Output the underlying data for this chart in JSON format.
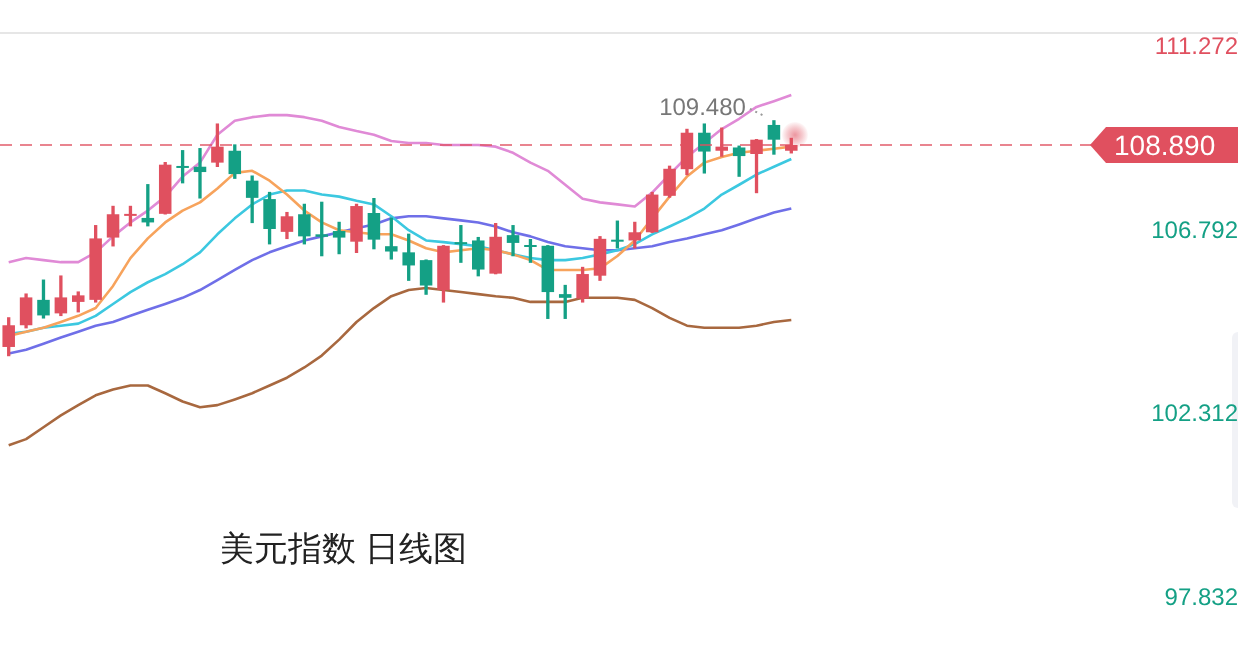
{
  "chart_data": {
    "type": "candlestick",
    "title": "美元指数 日线图",
    "categories": [
      null,
      null,
      null,
      null,
      null,
      null,
      null,
      null,
      null,
      null,
      null,
      null,
      null,
      null,
      null,
      null,
      null,
      null,
      null,
      null,
      null,
      null,
      null,
      null,
      null,
      null,
      null,
      null,
      null,
      null,
      null,
      null,
      null,
      null,
      null,
      null,
      null,
      null,
      null,
      null,
      null,
      null,
      null,
      null,
      null,
      null
    ],
    "ohlc": [
      [
        103.96,
        104.67,
        103.75,
        104.49
      ],
      [
        104.49,
        105.25,
        104.43,
        105.17
      ],
      [
        105.11,
        105.59,
        104.67,
        104.73
      ],
      [
        104.78,
        105.69,
        104.73,
        105.17
      ],
      [
        105.06,
        105.3,
        104.82,
        105.22
      ],
      [
        105.11,
        106.92,
        105.06,
        106.61
      ],
      [
        106.63,
        107.39,
        106.43,
        107.2
      ],
      [
        107.16,
        107.39,
        106.92,
        107.2
      ],
      [
        107.11,
        107.92,
        106.92,
        107.0
      ],
      [
        107.21,
        108.46,
        107.21,
        108.41
      ],
      [
        108.36,
        108.75,
        107.97,
        108.33
      ],
      [
        108.36,
        108.8,
        107.6,
        108.23
      ],
      [
        108.46,
        109.4,
        108.37,
        108.85
      ],
      [
        108.75,
        108.89,
        108.08,
        108.18
      ],
      [
        108.02,
        108.13,
        107.0,
        107.6
      ],
      [
        107.57,
        107.73,
        106.48,
        106.84
      ],
      [
        106.77,
        107.24,
        106.61,
        107.15
      ],
      [
        107.2,
        107.44,
        106.48,
        106.66
      ],
      [
        106.71,
        107.49,
        106.19,
        106.65
      ],
      [
        106.79,
        107.0,
        106.24,
        106.63
      ],
      [
        106.53,
        107.44,
        106.27,
        107.4
      ],
      [
        107.23,
        107.58,
        106.36,
        106.58
      ],
      [
        106.42,
        107.1,
        106.11,
        106.29
      ],
      [
        106.27,
        106.71,
        105.59,
        105.95
      ],
      [
        106.08,
        106.08,
        105.25,
        105.46
      ],
      [
        105.35,
        106.43,
        105.06,
        106.43
      ],
      [
        106.5,
        106.92,
        106.03,
        106.47
      ],
      [
        106.56,
        106.63,
        105.7,
        105.85
      ],
      [
        105.75,
        106.97,
        105.75,
        106.65
      ],
      [
        106.69,
        106.92,
        106.19,
        106.5
      ],
      [
        106.43,
        106.58,
        106.03,
        106.4
      ],
      [
        106.43,
        106.43,
        104.66,
        105.3
      ],
      [
        105.25,
        105.46,
        104.66,
        105.16
      ],
      [
        105.14,
        105.9,
        105.06,
        105.74
      ],
      [
        105.7,
        106.65,
        105.59,
        106.6
      ],
      [
        106.56,
        107.03,
        106.38,
        106.53
      ],
      [
        106.56,
        107.0,
        106.38,
        106.76
      ],
      [
        106.76,
        107.73,
        106.76,
        107.68
      ],
      [
        107.65,
        108.37,
        107.62,
        108.31
      ],
      [
        108.3,
        109.27,
        108.17,
        109.19
      ],
      [
        109.19,
        109.4,
        108.21,
        108.73
      ],
      [
        108.75,
        109.3,
        108.62,
        108.85
      ],
      [
        108.83,
        108.86,
        108.13,
        108.62
      ],
      [
        108.67,
        109.02,
        107.73,
        109.02
      ],
      [
        109.38,
        109.48,
        108.67,
        109.02
      ],
      [
        108.75,
        109.05,
        108.7,
        108.89
      ]
    ],
    "colors": [
      "#e0505f",
      "#e0505f",
      "#14a085",
      "#e0505f",
      "#e0505f",
      "#e0505f",
      "#e0505f",
      "#e0505f",
      "#14a085",
      "#e0505f",
      "#14a085",
      "#14a085",
      "#e0505f",
      "#14a085",
      "#14a085",
      "#14a085",
      "#e0505f",
      "#14a085",
      "#14a085",
      "#14a085",
      "#e0505f",
      "#14a085",
      "#14a085",
      "#14a085",
      "#14a085",
      "#e0505f",
      "#14a085",
      "#14a085",
      "#e0505f",
      "#14a085",
      "#14a085",
      "#14a085",
      "#14a085",
      "#e0505f",
      "#e0505f",
      "#14a085",
      "#e0505f",
      "#e0505f",
      "#e0505f",
      "#e0505f",
      "#14a085",
      "#e0505f",
      "#14a085",
      "#e0505f",
      "#14a085",
      "#e0505f"
    ],
    "series": [
      {
        "type": "line",
        "color": "#e08ad6",
        "values": [
          106.03,
          106.13,
          106.08,
          106.03,
          106.03,
          106.27,
          106.66,
          107.0,
          107.29,
          107.63,
          108.12,
          108.46,
          109.14,
          109.48,
          109.57,
          109.62,
          109.62,
          109.57,
          109.48,
          109.33,
          109.23,
          109.14,
          108.99,
          108.94,
          108.94,
          108.89,
          108.89,
          108.89,
          108.85,
          108.7,
          108.46,
          108.26,
          107.92,
          107.58,
          107.49,
          107.44,
          107.39,
          107.73,
          108.17,
          108.6,
          108.94,
          109.28,
          109.53,
          109.82,
          109.96,
          110.11
        ]
      },
      {
        "type": "line",
        "color": "#6f6fe8",
        "values": [
          103.8,
          103.89,
          104.04,
          104.19,
          104.33,
          104.48,
          104.57,
          104.72,
          104.87,
          105.01,
          105.16,
          105.35,
          105.59,
          105.84,
          106.08,
          106.27,
          106.42,
          106.56,
          106.66,
          106.76,
          106.86,
          106.95,
          107.1,
          107.15,
          107.15,
          107.1,
          107.05,
          107.0,
          106.9,
          106.76,
          106.66,
          106.52,
          106.42,
          106.37,
          106.32,
          106.32,
          106.37,
          106.42,
          106.52,
          106.61,
          106.71,
          106.81,
          106.95,
          107.1,
          107.24,
          107.34
        ]
      },
      {
        "type": "line",
        "color": "#a8683f",
        "values": [
          101.56,
          101.71,
          102.0,
          102.29,
          102.54,
          102.78,
          102.92,
          103.02,
          103.02,
          102.83,
          102.63,
          102.49,
          102.54,
          102.68,
          102.83,
          103.02,
          103.21,
          103.46,
          103.75,
          104.14,
          104.57,
          104.91,
          105.2,
          105.35,
          105.4,
          105.35,
          105.3,
          105.25,
          105.2,
          105.16,
          105.06,
          105.06,
          105.06,
          105.16,
          105.16,
          105.16,
          105.11,
          104.91,
          104.67,
          104.48,
          104.43,
          104.43,
          104.43,
          104.48,
          104.57,
          104.62
        ]
      },
      {
        "type": "line",
        "color": "#f7a35c",
        "values": [
          104.23,
          104.33,
          104.43,
          104.57,
          104.72,
          104.91,
          105.45,
          106.13,
          106.61,
          107.0,
          107.29,
          107.49,
          107.83,
          108.21,
          108.26,
          108.02,
          107.68,
          107.29,
          107.0,
          106.81,
          106.76,
          106.71,
          106.71,
          106.56,
          106.37,
          106.27,
          106.32,
          106.37,
          106.32,
          106.22,
          106.08,
          105.84,
          105.84,
          105.84,
          105.88,
          106.18,
          106.56,
          107.1,
          107.63,
          108.12,
          108.46,
          108.6,
          108.7,
          108.75,
          108.8,
          108.85
        ]
      },
      {
        "type": "line",
        "color": "#3cc8e0",
        "values": [
          104.28,
          104.33,
          104.43,
          104.48,
          104.53,
          104.72,
          105.01,
          105.3,
          105.54,
          105.74,
          105.98,
          106.27,
          106.71,
          107.1,
          107.44,
          107.68,
          107.78,
          107.78,
          107.68,
          107.63,
          107.53,
          107.44,
          107.15,
          106.81,
          106.56,
          106.52,
          106.47,
          106.42,
          106.32,
          106.22,
          106.13,
          106.08,
          106.08,
          106.13,
          106.22,
          106.32,
          106.47,
          106.71,
          106.9,
          107.1,
          107.34,
          107.68,
          107.92,
          108.17,
          108.36,
          108.55
        ]
      }
    ],
    "ylim": [
      97.832,
      111.6
    ],
    "yticks": [
      111.272,
      106.792,
      102.312,
      97.832
    ],
    "ref_lines": [
      {
        "axis": "y",
        "value": 108.89,
        "label": "108.890",
        "color": "#e0505f",
        "line_style": "dashed"
      }
    ],
    "annotations": [
      {
        "text": "109.480",
        "y": 109.48
      }
    ],
    "tick_labels": "y",
    "grid": false,
    "legend": false,
    "marker": "none",
    "line_style": "solid"
  }
}
